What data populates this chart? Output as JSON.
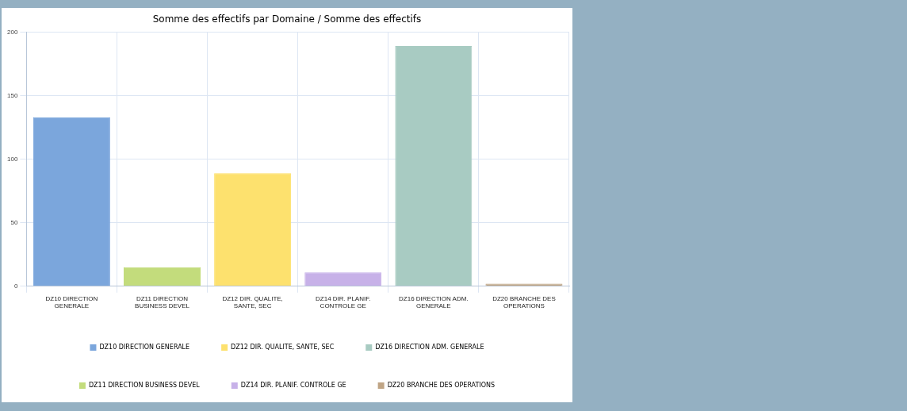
{
  "chart_data": {
    "type": "bar",
    "title": "Somme des effectifs par Domaine / Somme des effectifs",
    "categories": [
      "DZ10 DIRECTION GENERALE",
      "DZ11 DIRECTION BUSINESS DEVEL",
      "DZ12 DIR. QUALITE, SANTE, SEC",
      "DZ14 DIR. PLANIF. CONTROLE GE",
      "DZ16 DIRECTION ADM. GENERALE",
      "DZ20 BRANCHE DES OPERATIONS"
    ],
    "series": [
      {
        "name": "DZ10 DIRECTION GENERALE",
        "color": "#7ba6dc",
        "values": [
          133,
          null,
          null,
          null,
          null,
          null
        ]
      },
      {
        "name": "DZ11 DIRECTION BUSINESS DEVEL",
        "color": "#c3dc7c",
        "values": [
          null,
          15,
          null,
          null,
          null,
          null
        ]
      },
      {
        "name": "DZ12 DIR. QUALITE, SANTE, SEC",
        "color": "#fde16e",
        "values": [
          null,
          null,
          89,
          null,
          null,
          null
        ]
      },
      {
        "name": "DZ14 DIR. PLANIF. CONTROLE GE",
        "color": "#c7b1e8",
        "values": [
          null,
          null,
          null,
          11,
          null,
          null
        ]
      },
      {
        "name": "DZ16 DIRECTION ADM. GENERALE",
        "color": "#a8cbc2",
        "values": [
          null,
          null,
          null,
          null,
          189,
          null
        ]
      },
      {
        "name": "DZ20 BRANCHE DES OPERATIONS",
        "color": "#c0a585",
        "values": [
          null,
          null,
          null,
          null,
          null,
          2
        ]
      }
    ],
    "ylim": [
      0,
      200
    ],
    "yticks": [
      0,
      50,
      100,
      150,
      200
    ],
    "grid": true,
    "legend": "bottom"
  }
}
